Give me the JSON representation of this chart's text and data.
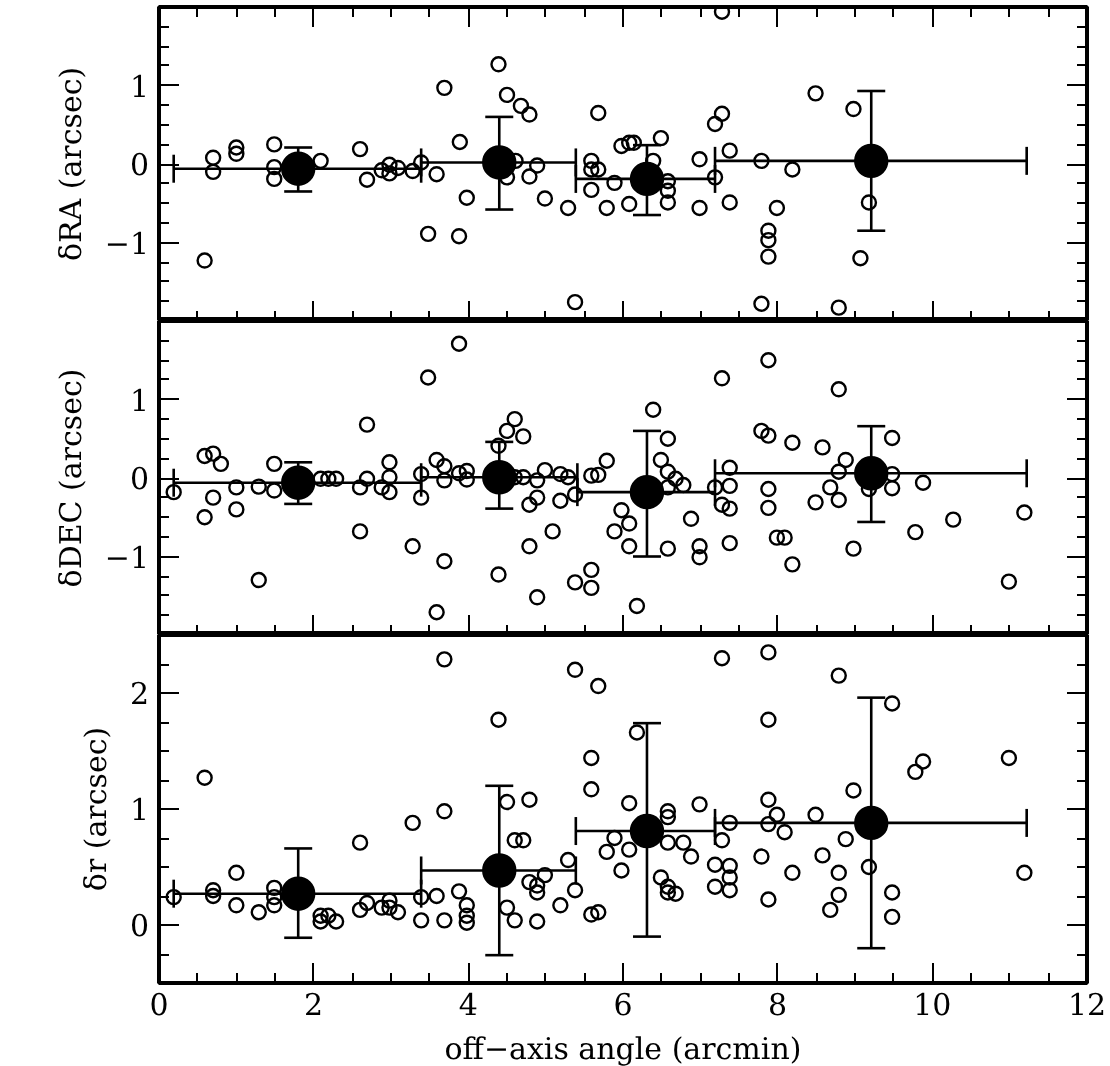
{
  "chart_data": [
    {
      "type": "scatter",
      "ylabel": "δRA (arcsec)",
      "xlim": [
        0,
        12
      ],
      "xticks": [
        0,
        2,
        4,
        6,
        8,
        10,
        12
      ],
      "ylim": [
        -2,
        2
      ],
      "yticks": [
        {
          "value": -1,
          "label": "−1"
        },
        0,
        1
      ],
      "tick_labels": "y",
      "grid": false,
      "marker": "circle",
      "series": [
        {
          "color": "#000000",
          "x": [
            0.59,
            0.7,
            0.7,
            1.0,
            1.0,
            1.49,
            1.49,
            1.49,
            2.09,
            2.6,
            2.69,
            2.88,
            2.98,
            2.98,
            3.09,
            3.28,
            3.39,
            3.59,
            3.69,
            3.48,
            3.88,
            3.89,
            3.98,
            4.39,
            4.5,
            4.5,
            4.61,
            4.68,
            4.79,
            4.79,
            4.89,
            4.99,
            5.29,
            5.38,
            5.59,
            5.59,
            5.59,
            5.68,
            5.68,
            5.89,
            5.79,
            5.98,
            6.08,
            6.14,
            6.08,
            6.39,
            6.49,
            6.58,
            6.58,
            6.58,
            6.99,
            6.99,
            7.19,
            7.28,
            7.28,
            7.38,
            7.19,
            7.38,
            7.79,
            7.79,
            7.88,
            7.88,
            7.88,
            7.99,
            8.19,
            8.49,
            8.79,
            8.98,
            9.07,
            9.18
          ],
          "values": [
            -1.23,
            0.08,
            -0.1,
            0.21,
            0.13,
            0.25,
            -0.04,
            -0.19,
            0.04,
            0.19,
            -0.2,
            -0.08,
            -0.01,
            -0.12,
            -0.05,
            -0.09,
            0.02,
            -0.13,
            0.97,
            -0.89,
            -0.92,
            0.28,
            -0.43,
            1.27,
            0.88,
            -0.17,
            0.04,
            0.74,
            0.63,
            -0.16,
            -0.02,
            -0.44,
            -0.56,
            -1.76,
            0.04,
            -0.07,
            -0.33,
            0.65,
            -0.07,
            -0.24,
            -0.56,
            0.23,
            0.27,
            0.27,
            -0.51,
            0.04,
            0.33,
            -0.22,
            -0.34,
            -0.49,
            0.06,
            -0.56,
            0.51,
            0.64,
            1.94,
            0.17,
            -0.17,
            -0.49,
            0.04,
            -1.78,
            -0.85,
            -0.97,
            -1.18,
            -0.56,
            -0.07,
            0.9,
            -1.83,
            0.7,
            -1.2,
            -0.49
          ]
        },
        {
          "color": "#000000",
          "x": [
            1.8,
            4.4,
            6.31,
            9.21
          ],
          "values": [
            -0.06,
            0.02,
            -0.19,
            0.04
          ],
          "errors": [
            [
              -0.35,
              0.21
            ],
            [
              -0.58,
              0.6
            ],
            [
              -0.65,
              0.24
            ],
            [
              -0.85,
              0.93
            ]
          ],
          "xerrors": [
            [
              0.19,
              3.39
            ],
            [
              3.39,
              5.39
            ],
            [
              5.39,
              7.19
            ],
            [
              7.19,
              11.22
            ]
          ]
        }
      ]
    },
    {
      "type": "scatter",
      "ylabel": "δDEC (arcsec)",
      "xlim": [
        0,
        12
      ],
      "xticks": [
        0,
        2,
        4,
        6,
        8,
        10,
        12
      ],
      "ylim": [
        -2,
        2
      ],
      "yticks": [
        {
          "value": -1,
          "label": "−1"
        },
        0,
        1
      ],
      "tick_labels": "y",
      "grid": false,
      "marker": "circle",
      "series": [
        {
          "color": "#000000",
          "x": [
            0.19,
            0.59,
            0.7,
            0.59,
            0.7,
            0.8,
            1.0,
            1.0,
            1.29,
            1.29,
            1.49,
            1.49,
            2.09,
            2.19,
            2.29,
            2.6,
            2.6,
            2.69,
            2.69,
            2.88,
            2.98,
            2.98,
            2.98,
            3.28,
            3.39,
            3.39,
            3.48,
            3.59,
            3.59,
            3.69,
            3.69,
            3.69,
            3.88,
            3.88,
            3.98,
            3.98,
            4.39,
            4.39,
            4.5,
            4.6,
            4.71,
            4.6,
            4.71,
            4.79,
            4.79,
            4.89,
            4.89,
            4.89,
            4.99,
            5.09,
            5.19,
            5.19,
            5.29,
            5.38,
            5.38,
            5.59,
            5.59,
            5.59,
            5.68,
            5.79,
            5.98,
            6.08,
            5.89,
            6.08,
            6.18,
            6.39,
            6.49,
            6.58,
            6.58,
            6.68,
            6.78,
            6.58,
            6.88,
            6.58,
            6.99,
            6.99,
            7.19,
            7.28,
            7.28,
            7.38,
            7.38,
            7.38,
            7.38,
            7.79,
            7.88,
            7.88,
            7.88,
            7.88,
            7.99,
            8.09,
            8.19,
            8.19,
            8.49,
            8.58,
            8.68,
            8.79,
            8.79,
            8.79,
            8.88,
            8.98,
            9.18,
            9.48,
            9.48,
            9.48,
            9.78,
            9.88,
            10.27,
            10.99,
            11.19
          ],
          "values": [
            -0.18,
            0.28,
            0.31,
            -0.5,
            -0.25,
            0.18,
            -0.12,
            -0.4,
            -1.3,
            -0.11,
            0.18,
            -0.16,
            -0.01,
            -0.01,
            -0.01,
            -0.12,
            -0.68,
            0.68,
            -0.01,
            -0.12,
            0.2,
            0.01,
            -0.18,
            -0.87,
            0.05,
            -0.25,
            1.28,
            0.23,
            -1.71,
            0.15,
            -0.03,
            -1.06,
            1.71,
            0.06,
            0.09,
            -0.02,
            0.41,
            -1.23,
            0.6,
            0.75,
            0.53,
            0.01,
            0.01,
            -0.34,
            -0.87,
            -0.03,
            -0.25,
            -1.52,
            0.1,
            -0.68,
            0.05,
            -0.29,
            0.01,
            -0.21,
            -1.33,
            0.03,
            -1.17,
            -1.4,
            0.04,
            0.22,
            -0.41,
            -0.58,
            -0.68,
            -0.87,
            -1.63,
            0.87,
            0.23,
            0.5,
            0.08,
            -0.01,
            -0.09,
            -0.12,
            -0.52,
            -0.9,
            -0.87,
            -1.01,
            -0.12,
            1.27,
            -0.34,
            0.13,
            -0.1,
            -0.39,
            -0.83,
            0.6,
            0.54,
            1.5,
            -0.14,
            -0.38,
            -0.76,
            -0.76,
            0.45,
            -1.1,
            -0.31,
            0.39,
            -0.12,
            1.13,
            0.08,
            -0.28,
            0.23,
            -0.9,
            -0.14,
            0.51,
            0.05,
            -0.13,
            -0.69,
            -0.06,
            -0.53,
            -1.32,
            -0.44
          ]
        },
        {
          "color": "#000000",
          "x": [
            1.8,
            4.4,
            6.31,
            9.21
          ],
          "values": [
            -0.06,
            0.01,
            -0.18,
            0.06
          ],
          "errors": [
            [
              -0.33,
              0.2
            ],
            [
              -0.39,
              0.46
            ],
            [
              -1.0,
              0.6
            ],
            [
              -0.56,
              0.66
            ]
          ],
          "xerrors": [
            [
              0.19,
              3.39
            ],
            [
              3.39,
              5.41
            ],
            [
              5.41,
              7.19
            ],
            [
              7.19,
              11.22
            ]
          ]
        }
      ]
    },
    {
      "type": "scatter",
      "ylabel": "δr (arcsec)",
      "xlabel": "off−axis angle (arcmin)",
      "xlim": [
        0,
        12
      ],
      "xticks": [
        0,
        2,
        4,
        6,
        8,
        10,
        12
      ],
      "ylim": [
        -0.5,
        2.5
      ],
      "yticks": [
        0,
        1,
        2
      ],
      "grid": false,
      "marker": "circle",
      "series": [
        {
          "color": "#000000",
          "x": [
            0.19,
            0.59,
            0.7,
            0.7,
            1.0,
            1.0,
            1.29,
            1.49,
            1.49,
            1.49,
            2.09,
            2.09,
            2.19,
            2.29,
            2.6,
            2.6,
            2.69,
            2.88,
            2.98,
            2.98,
            3.09,
            3.28,
            3.39,
            3.39,
            3.59,
            3.69,
            3.69,
            3.69,
            3.88,
            3.98,
            3.98,
            3.98,
            4.39,
            4.5,
            4.5,
            4.6,
            4.6,
            4.71,
            4.79,
            4.79,
            4.89,
            4.89,
            4.89,
            4.99,
            5.19,
            5.29,
            5.38,
            5.38,
            5.59,
            5.59,
            5.59,
            5.68,
            5.68,
            5.79,
            5.89,
            5.98,
            6.08,
            6.08,
            6.18,
            6.49,
            6.58,
            6.58,
            6.58,
            6.58,
            6.58,
            6.68,
            6.78,
            6.88,
            6.99,
            7.19,
            7.19,
            7.28,
            7.28,
            7.38,
            7.38,
            7.38,
            7.38,
            7.79,
            7.88,
            7.88,
            7.88,
            7.88,
            7.88,
            7.99,
            8.09,
            8.19,
            8.49,
            8.58,
            8.68,
            8.79,
            8.79,
            8.79,
            8.88,
            8.98,
            9.18,
            9.48,
            9.48,
            9.48,
            9.78,
            9.88,
            10.99,
            11.19
          ],
          "values": [
            0.24,
            1.27,
            0.3,
            0.25,
            0.45,
            0.17,
            0.11,
            0.32,
            0.24,
            0.17,
            0.08,
            0.03,
            0.08,
            0.03,
            0.71,
            0.13,
            0.19,
            0.15,
            0.21,
            0.15,
            0.11,
            0.88,
            0.24,
            0.04,
            0.25,
            2.29,
            0.98,
            0.04,
            0.29,
            0.17,
            0.08,
            0.02,
            1.77,
            1.06,
            0.15,
            0.04,
            0.73,
            0.73,
            1.08,
            0.37,
            0.34,
            0.28,
            0.03,
            0.43,
            0.17,
            0.56,
            2.2,
            0.3,
            1.44,
            1.17,
            0.09,
            2.06,
            0.11,
            0.63,
            0.75,
            0.47,
            0.65,
            1.05,
            1.66,
            0.41,
            0.98,
            0.93,
            0.71,
            0.33,
            0.28,
            0.27,
            0.71,
            0.59,
            1.04,
            0.52,
            0.33,
            2.3,
            0.73,
            0.88,
            0.51,
            0.41,
            0.3,
            0.59,
            2.35,
            1.77,
            1.08,
            0.87,
            0.22,
            0.95,
            0.8,
            0.45,
            0.95,
            0.6,
            0.13,
            2.15,
            0.45,
            0.26,
            0.74,
            1.16,
            0.5,
            1.91,
            0.28,
            0.07,
            1.32,
            1.41,
            1.44,
            0.45
          ]
        },
        {
          "color": "#000000",
          "x": [
            1.8,
            4.4,
            6.31,
            9.21
          ],
          "values": [
            0.27,
            0.47,
            0.81,
            0.88
          ],
          "errors": [
            [
              -0.11,
              0.66
            ],
            [
              -0.26,
              1.2
            ],
            [
              -0.1,
              1.74
            ],
            [
              -0.2,
              1.96
            ]
          ],
          "xerrors": [
            [
              0.19,
              3.39
            ],
            [
              3.39,
              5.39
            ],
            [
              5.39,
              7.19
            ],
            [
              7.19,
              11.22
            ]
          ]
        }
      ]
    }
  ]
}
